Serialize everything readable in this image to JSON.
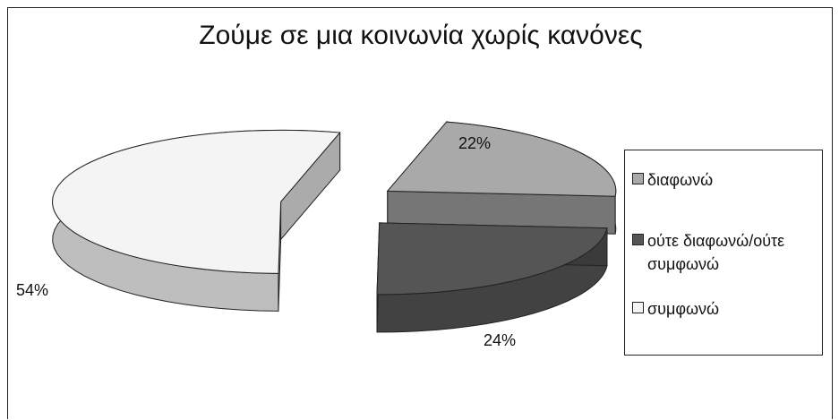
{
  "chart_data": {
    "type": "pie",
    "title": "Ζούμε σε μια κοινωνία χωρίς κανόνες",
    "categories": [
      "διαφωνώ",
      "ούτε διαφωνώ/ούτε συμφωνώ",
      "συμφωνώ"
    ],
    "values": [
      22,
      24,
      54
    ],
    "data_labels": [
      "22%",
      "24%",
      "54%"
    ],
    "colors": [
      "#a9a9a9",
      "#555555",
      "#f4f4f4"
    ],
    "legend": "right",
    "style": "3d-exploded"
  }
}
